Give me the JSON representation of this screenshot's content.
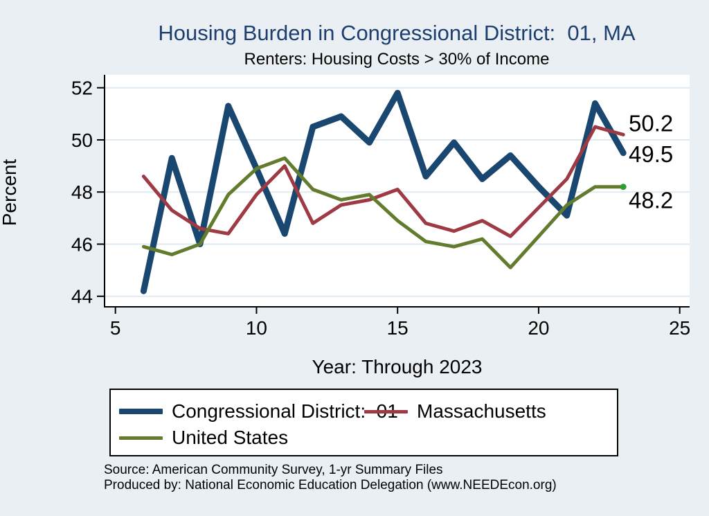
{
  "title": "Housing Burden in Congressional District:  01, MA",
  "subtitle": "Renters: Housing Costs > 30% of Income",
  "colors": {
    "background": "#E9EFF3",
    "plot_background": "#FFFFFF",
    "gridline": "#DFEAF2",
    "axis": "#000000",
    "title_text": "#1F3E70",
    "end_marker_green": "#2F9E2F"
  },
  "y_axis": {
    "label": "Percent",
    "ticks": [
      44,
      46,
      48,
      50,
      52
    ]
  },
  "x_axis": {
    "label": "Year: Through 2023",
    "ticks": [
      5,
      10,
      15,
      20,
      25
    ]
  },
  "chart_data": {
    "type": "line",
    "x": [
      6,
      7,
      8,
      9,
      10,
      11,
      12,
      13,
      14,
      15,
      16,
      17,
      18,
      19,
      20,
      21,
      22,
      23
    ],
    "series": [
      {
        "name": "Congressional District:  01",
        "color": "#1A476F",
        "width": 9,
        "values": [
          44.2,
          49.3,
          46.0,
          51.3,
          48.9,
          46.4,
          50.5,
          50.9,
          49.9,
          51.8,
          48.6,
          49.9,
          48.5,
          49.4,
          48.2,
          47.1,
          51.4,
          49.5
        ]
      },
      {
        "name": "Massachusetts",
        "color": "#9D3A44",
        "width": 5,
        "values": [
          48.6,
          47.3,
          46.6,
          46.4,
          47.9,
          49.0,
          46.8,
          47.5,
          47.7,
          48.1,
          46.8,
          46.5,
          46.9,
          46.3,
          47.4,
          48.5,
          50.5,
          50.2
        ]
      },
      {
        "name": "United States",
        "color": "#637B2D",
        "width": 5,
        "end_marker": true,
        "values": [
          45.9,
          45.6,
          46.0,
          47.9,
          48.9,
          49.3,
          48.1,
          47.7,
          47.9,
          46.9,
          46.1,
          45.9,
          46.2,
          45.1,
          46.3,
          47.5,
          48.2,
          48.2
        ]
      }
    ],
    "end_labels": [
      {
        "text": "50.2",
        "value": 50.2,
        "series": "Massachusetts"
      },
      {
        "text": "49.5",
        "value": 49.5,
        "series": "Congressional District:  01"
      },
      {
        "text": "48.2",
        "value": 48.2,
        "series": "United States"
      }
    ],
    "xlim": [
      4.6,
      25.4
    ],
    "ylim": [
      43.6,
      52.5
    ],
    "grid": true,
    "legend_position": "bottom"
  },
  "footer": {
    "source": "Source: American Community Survey, 1-yr Summary Files",
    "produced_by": "Produced by: National Economic Education Delegation (www.NEEDEcon.org)"
  }
}
